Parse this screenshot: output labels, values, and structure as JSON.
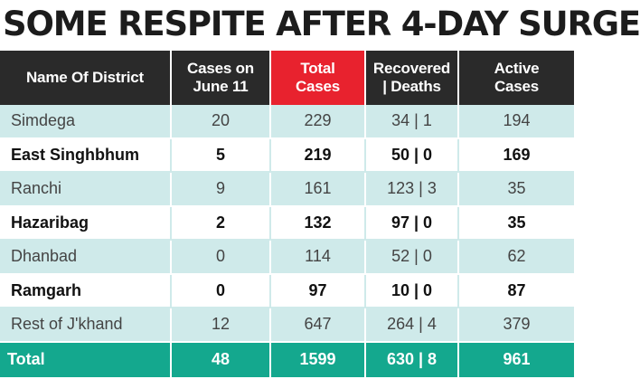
{
  "headline": "SOME RESPITE AFTER 4-DAY SURGE",
  "colors": {
    "header_bg": "#2a2a2a",
    "accent": "#e8222e",
    "light_row": "#cfeaea",
    "total_row": "#14a88e"
  },
  "table": {
    "columns": [
      "Name Of District",
      "Cases on\nJune 11",
      "Total\nCases",
      "Recovered\n| Deaths",
      "Active\nCases"
    ],
    "rows": [
      [
        "Simdega",
        "20",
        "229",
        "34  |  1",
        "194"
      ],
      [
        "East Singhbhum",
        "5",
        "219",
        "50  |  0",
        "169"
      ],
      [
        "Ranchi",
        "9",
        "161",
        "123  |  3",
        "35"
      ],
      [
        "Hazaribag",
        "2",
        "132",
        "97  |  0",
        "35"
      ],
      [
        "Dhanbad",
        "0",
        "114",
        "52  |  0",
        "62"
      ],
      [
        "Ramgarh",
        "0",
        "97",
        "10  |  0",
        "87"
      ],
      [
        "Rest of J'khand",
        "12",
        "647",
        "264  |  4",
        "379"
      ]
    ],
    "total": [
      "Total",
      "48",
      "1599",
      "630  |  8",
      "961"
    ]
  }
}
